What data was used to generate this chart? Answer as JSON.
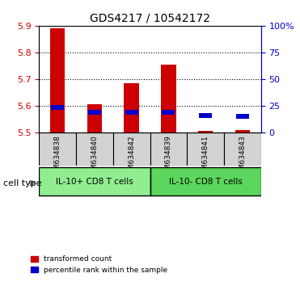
{
  "title": "GDS4217 / 10542172",
  "samples": [
    "GSM634838",
    "GSM634840",
    "GSM634842",
    "GSM634839",
    "GSM634841",
    "GSM634843"
  ],
  "red_values": [
    5.89,
    5.605,
    5.685,
    5.755,
    5.505,
    5.51
  ],
  "blue_values": [
    5.595,
    5.575,
    5.575,
    5.575,
    5.565,
    5.56
  ],
  "ymin": 5.5,
  "ymax": 5.9,
  "yticks_left": [
    5.5,
    5.6,
    5.7,
    5.8,
    5.9
  ],
  "yticks_right": [
    0,
    25,
    50,
    75,
    100
  ],
  "groups": [
    {
      "label": "IL-10+ CD8 T cells",
      "indices": [
        0,
        1,
        2
      ],
      "color": "#90EE90"
    },
    {
      "label": "IL-10- CD8 T cells",
      "indices": [
        3,
        4,
        5
      ],
      "color": "#5CD65C"
    }
  ],
  "cell_type_label": "cell type",
  "legend_red": "transformed count",
  "legend_blue": "percentile rank within the sample",
  "bar_width": 0.4,
  "red_color": "#CC0000",
  "blue_color": "#0000CC",
  "left_axis_color": "#CC0000",
  "right_axis_color": "#0000CC",
  "bg_color": "#FFFFFF",
  "grid_color": "#000000",
  "sample_bg_color": "#D3D3D3"
}
